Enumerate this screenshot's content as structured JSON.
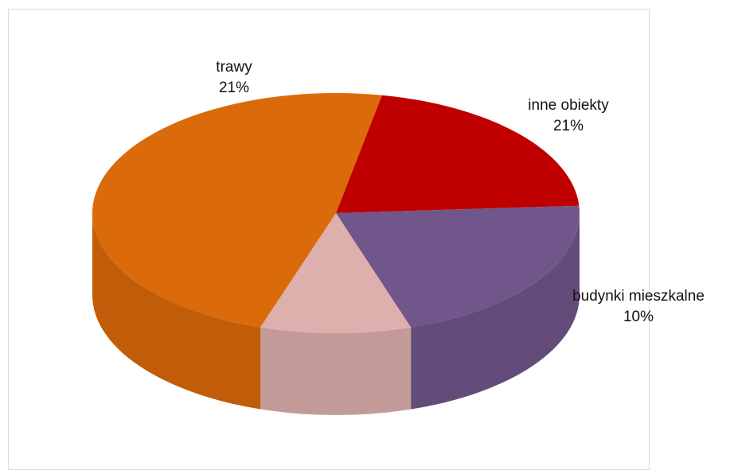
{
  "chart_data": {
    "type": "pie",
    "style": "3d",
    "title": "",
    "slices": [
      {
        "label": "trawy",
        "value": 21,
        "value_label": "21%",
        "color": "#C00000"
      },
      {
        "label": "inne obiekty",
        "value": 21,
        "value_label": "21%",
        "color": "#70568A"
      },
      {
        "label": "budynki mieszkalne",
        "value": 10,
        "value_label": "10%",
        "color": "#DDB0AE"
      },
      {
        "label": "",
        "value": 48,
        "value_label": "",
        "color": "#DB6A0A"
      }
    ]
  }
}
